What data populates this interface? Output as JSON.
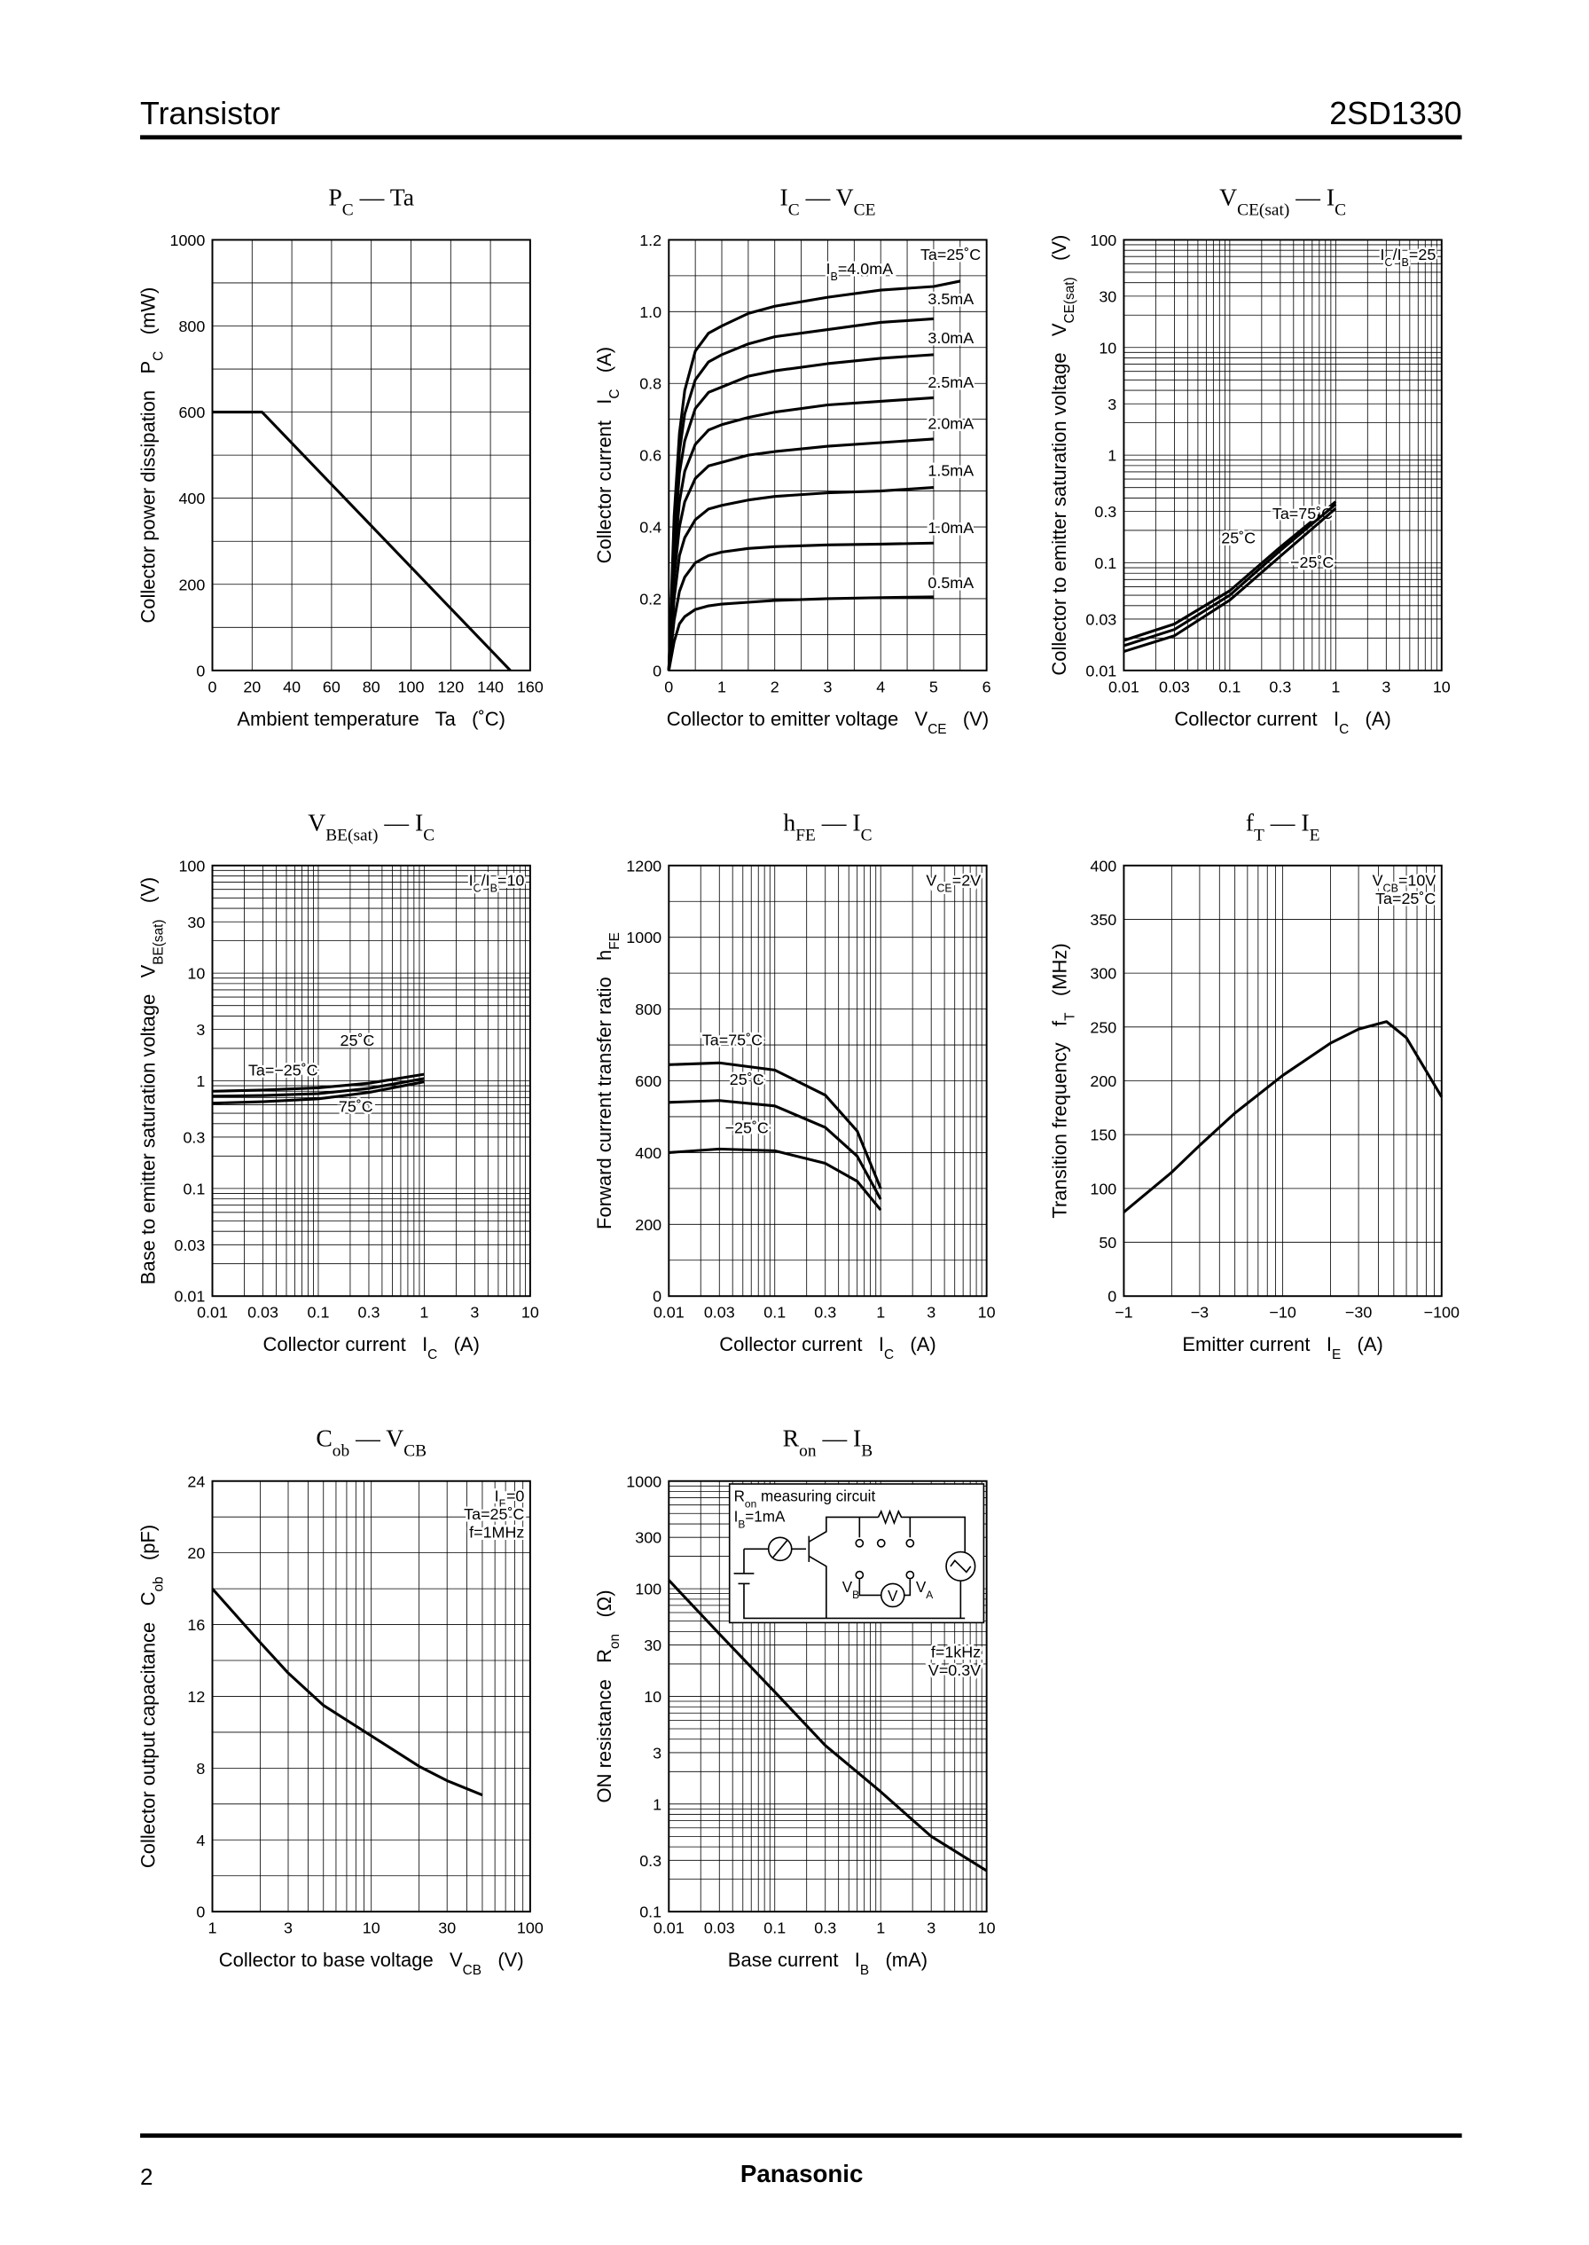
{
  "header": {
    "left": "Transistor",
    "right": "2SD1330"
  },
  "footer": {
    "page": "2",
    "brand": "Panasonic"
  },
  "chart_data": [
    {
      "type": "line",
      "title": [
        "P",
        "C",
        " — Ta"
      ],
      "x_label": "Ambient temperature   Ta   (˚C)",
      "y_label": [
        "Collector power dissipation   P",
        "C",
        "   (mW)"
      ],
      "x": [
        0,
        25,
        150
      ],
      "series": [
        {
          "color": "#000000",
          "values": [
            600,
            600,
            0
          ]
        }
      ],
      "xlim": [
        0,
        160
      ],
      "xticks": [
        0,
        20,
        40,
        60,
        80,
        100,
        120,
        140,
        160
      ],
      "ylim": [
        0,
        1000
      ],
      "yticks": [
        0,
        200,
        400,
        600,
        800,
        1000
      ],
      "grid": true
    },
    {
      "type": "line",
      "title": [
        "I",
        "C",
        " — V",
        "CE"
      ],
      "x_label": [
        "Collector to emitter voltage   V",
        "CE",
        "   (V)"
      ],
      "y_label": [
        "Collector current   I",
        "C",
        "   (A)"
      ],
      "notes": [
        "Ta=25˚C"
      ],
      "x": [
        0,
        0.1,
        0.2,
        0.3,
        0.5,
        0.75,
        1,
        1.5,
        2,
        3,
        4,
        5,
        5.5
      ],
      "series": [
        {
          "name": [
            "I",
            "B",
            "=4.0mA"
          ],
          "color": "#000000",
          "values": [
            0,
            0.43,
            0.66,
            0.78,
            0.89,
            0.94,
            0.96,
            0.995,
            1.015,
            1.04,
            1.06,
            1.07,
            1.085
          ]
        },
        {
          "name": "3.5mA",
          "color": "#000000",
          "values": [
            0,
            0.39,
            0.61,
            0.715,
            0.81,
            0.86,
            0.88,
            0.91,
            0.93,
            0.95,
            0.97,
            0.98,
            null
          ]
        },
        {
          "name": "3.0mA",
          "color": "#000000",
          "values": [
            0,
            0.35,
            0.55,
            0.64,
            0.73,
            0.775,
            0.79,
            0.82,
            0.835,
            0.855,
            0.87,
            0.88,
            null
          ]
        },
        {
          "name": "2.5mA",
          "color": "#000000",
          "values": [
            0,
            0.3,
            0.47,
            0.555,
            0.63,
            0.67,
            0.685,
            0.705,
            0.72,
            0.74,
            0.75,
            0.76,
            null
          ]
        },
        {
          "name": "2.0mA",
          "color": "#000000",
          "values": [
            0,
            0.26,
            0.4,
            0.47,
            0.535,
            0.57,
            0.58,
            0.6,
            0.61,
            0.625,
            0.635,
            0.645,
            null
          ]
        },
        {
          "name": "1.5mA",
          "color": "#000000",
          "values": [
            0,
            0.2,
            0.32,
            0.37,
            0.42,
            0.45,
            0.46,
            0.475,
            0.485,
            0.495,
            0.5,
            0.51,
            null
          ]
        },
        {
          "name": "1.0mA",
          "color": "#000000",
          "values": [
            0,
            0.14,
            0.22,
            0.26,
            0.3,
            0.32,
            0.33,
            0.34,
            0.345,
            0.35,
            0.352,
            0.355,
            null
          ]
        },
        {
          "name": "0.5mA",
          "color": "#000000",
          "values": [
            0,
            0.08,
            0.13,
            0.15,
            0.17,
            0.18,
            0.185,
            0.19,
            0.195,
            0.2,
            0.203,
            0.205,
            null
          ]
        }
      ],
      "xlim": [
        0,
        6
      ],
      "xticks": [
        0,
        1,
        2,
        3,
        4,
        5,
        6
      ],
      "ylim": [
        0,
        1.2
      ],
      "yticks": [
        0,
        0.2,
        0.4,
        0.6,
        0.8,
        {
          "value": 1,
          "label": "1.0"
        },
        1.2
      ],
      "grid": true
    },
    {
      "type": "line",
      "title": [
        "V",
        "CE(sat)",
        " — I",
        "C"
      ],
      "x_label": [
        "Collector current   I",
        "C",
        "   (A)"
      ],
      "y_label": [
        "Collector to emitter saturation voltage   V",
        "CE(sat)",
        "   (V)"
      ],
      "notes": [
        [
          "I",
          "C",
          "/I",
          "B",
          "=25"
        ]
      ],
      "x": [
        0.01,
        0.03,
        0.1,
        0.3,
        1
      ],
      "series": [
        {
          "name": "Ta=75˚C",
          "color": "#000000",
          "values": [
            0.019,
            0.027,
            0.055,
            0.14,
            0.37
          ]
        },
        {
          "name": "25˚C",
          "color": "#000000",
          "values": [
            0.017,
            0.024,
            0.05,
            0.13,
            0.35
          ]
        },
        {
          "name": "−25˚C",
          "color": "#000000",
          "values": [
            0.015,
            0.021,
            0.045,
            0.115,
            0.32
          ]
        }
      ],
      "xlog": true,
      "ylog": true,
      "xlim": [
        0.01,
        10
      ],
      "xticks": [
        0.01,
        0.03,
        0.1,
        0.3,
        1,
        3,
        10
      ],
      "ylim": [
        0.01,
        100
      ],
      "yticks": [
        0.01,
        0.03,
        0.1,
        0.3,
        1,
        3,
        10,
        30,
        100
      ],
      "grid": true
    },
    {
      "type": "line",
      "title": [
        "V",
        "BE(sat)",
        " — I",
        "C"
      ],
      "x_label": [
        "Collector current   I",
        "C",
        "   (A)"
      ],
      "y_label": [
        "Base to emitter saturation voltage   V",
        "BE(sat)",
        "   (V)"
      ],
      "notes": [
        [
          "I",
          "C",
          "/I",
          "B",
          "=10"
        ]
      ],
      "x": [
        0.01,
        0.03,
        0.1,
        0.3,
        1
      ],
      "series": [
        {
          "name": "25˚C",
          "color": "#000000",
          "values": [
            0.72,
            0.73,
            0.76,
            0.85,
            1.05
          ]
        },
        {
          "name": "Ta=−25˚C",
          "color": "#000000",
          "values": [
            0.8,
            0.82,
            0.86,
            0.95,
            1.15
          ]
        },
        {
          "name": "75˚C",
          "color": "#000000",
          "values": [
            0.62,
            0.64,
            0.68,
            0.78,
            0.98
          ]
        }
      ],
      "xlog": true,
      "ylog": true,
      "xlim": [
        0.01,
        10
      ],
      "xticks": [
        0.01,
        0.03,
        0.1,
        0.3,
        1,
        3,
        10
      ],
      "ylim": [
        0.01,
        100
      ],
      "yticks": [
        0.01,
        0.03,
        0.1,
        0.3,
        1,
        3,
        10,
        30,
        100
      ],
      "grid": true
    },
    {
      "type": "line",
      "title": [
        "h",
        "FE",
        " — I",
        "C"
      ],
      "x_label": [
        "Collector current   I",
        "C",
        "   (A)"
      ],
      "y_label": [
        "Forward current transfer ratio   h",
        "FE"
      ],
      "notes": [
        [
          "V",
          "CE",
          "=2V"
        ]
      ],
      "x": [
        0.01,
        0.03,
        0.1,
        0.3,
        0.6,
        1
      ],
      "series": [
        {
          "name": "Ta=75˚C",
          "color": "#000000",
          "values": [
            645,
            650,
            630,
            560,
            460,
            300
          ]
        },
        {
          "name": "25˚C",
          "color": "#000000",
          "values": [
            540,
            545,
            530,
            470,
            390,
            270
          ]
        },
        {
          "name": "−25˚C",
          "color": "#000000",
          "values": [
            400,
            410,
            405,
            370,
            320,
            240
          ]
        }
      ],
      "xlog": true,
      "xlim": [
        0.01,
        10
      ],
      "xticks": [
        0.01,
        0.03,
        0.1,
        0.3,
        1,
        3,
        10
      ],
      "ylim": [
        0,
        1200
      ],
      "yticks": [
        0,
        200,
        400,
        600,
        800,
        1000,
        1200
      ],
      "grid": true
    },
    {
      "type": "line",
      "title": [
        "f",
        "T",
        " — I",
        "E"
      ],
      "x_label": [
        "Emitter current   I",
        "E",
        "   (A)"
      ],
      "y_label": [
        "Transition frequency   f",
        "T",
        "   (MHz)"
      ],
      "notes": [
        [
          "V",
          "CB",
          "=10V"
        ],
        "Ta=25˚C"
      ],
      "x": [
        -1,
        -2,
        -3,
        -5,
        -10,
        -20,
        -30,
        -45,
        -60,
        -100
      ],
      "series": [
        {
          "color": "#000000",
          "values": [
            78,
            115,
            140,
            170,
            205,
            235,
            248,
            255,
            240,
            185
          ]
        }
      ],
      "xlog": true,
      "xlim": [
        -1,
        -100
      ],
      "xticks": [
        {
          "value": -1,
          "label": "−1"
        },
        {
          "value": -3,
          "label": "−3"
        },
        {
          "value": -10,
          "label": "−10"
        },
        {
          "value": -30,
          "label": "−30"
        },
        {
          "value": -100,
          "label": "−100"
        }
      ],
      "ylim": [
        0,
        400
      ],
      "yticks": [
        0,
        50,
        100,
        150,
        200,
        250,
        300,
        350,
        400
      ],
      "grid": true
    },
    {
      "type": "line",
      "title": [
        "C",
        "ob",
        " — V",
        "CB"
      ],
      "x_label": [
        "Collector to base voltage   V",
        "CB",
        "   (V)"
      ],
      "y_label": [
        "Collector output capacitance   C",
        "ob",
        "   (pF)"
      ],
      "notes": [
        [
          "I",
          "E",
          "=0"
        ],
        "Ta=25˚C",
        "f=1MHz"
      ],
      "x": [
        1,
        2,
        3,
        5,
        10,
        20,
        30,
        50
      ],
      "series": [
        {
          "color": "#000000",
          "values": [
            18,
            15,
            13.3,
            11.5,
            9.8,
            8.1,
            7.3,
            6.5
          ]
        }
      ],
      "xlog": true,
      "xlim": [
        1,
        100
      ],
      "xticks": [
        1,
        3,
        10,
        30,
        100
      ],
      "ylim": [
        0,
        24
      ],
      "yticks": [
        0,
        4,
        8,
        12,
        16,
        20,
        24
      ],
      "grid": true
    },
    {
      "type": "line",
      "title": [
        "R",
        "on",
        " — I",
        "B"
      ],
      "x_label": [
        "Base current   I",
        "B",
        "   (mA)"
      ],
      "y_label": [
        "ON resistance   R",
        "on",
        "   (Ω)"
      ],
      "notes": [
        "f=1kHz",
        "V=0.3V"
      ],
      "inset": {
        "title": [
          "R",
          "on",
          " measuring circuit"
        ],
        "condition": [
          "I",
          "B",
          "=1mA"
        ],
        "labels": [
          [
            "V",
            "B"
          ],
          [
            "V",
            "A"
          ],
          "V"
        ]
      },
      "x": [
        0.01,
        0.03,
        0.1,
        0.3,
        1,
        3,
        10
      ],
      "series": [
        {
          "color": "#000000",
          "values": [
            120,
            38,
            11,
            3.5,
            1.3,
            0.5,
            0.24
          ]
        }
      ],
      "xlog": true,
      "ylog": true,
      "xlim": [
        0.01,
        10
      ],
      "xticks": [
        0.01,
        0.03,
        0.1,
        0.3,
        1,
        3,
        10
      ],
      "ylim": [
        0.1,
        1000
      ],
      "yticks": [
        0.1,
        0.3,
        1,
        3,
        10,
        30,
        100,
        300,
        1000
      ],
      "grid": true
    }
  ]
}
